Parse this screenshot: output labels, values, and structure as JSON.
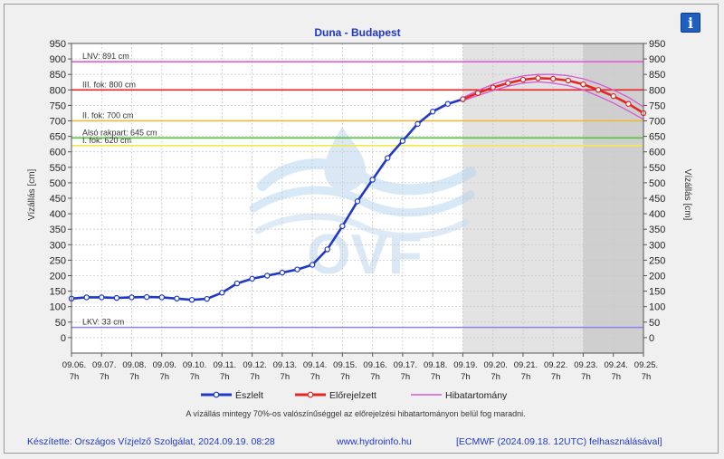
{
  "chart_data": {
    "type": "line",
    "title": "Duna - Budapest",
    "ylabel_left": "Vízállás [cm]",
    "ylabel_right": "Vízállás [cm]",
    "ylim": [
      -50,
      950
    ],
    "yticks": [
      0,
      50,
      100,
      150,
      200,
      250,
      300,
      350,
      400,
      450,
      500,
      550,
      600,
      650,
      700,
      750,
      800,
      850,
      900,
      950
    ],
    "x_dates": [
      "09.06.",
      "09.07.",
      "09.08.",
      "09.09.",
      "09.10.",
      "09.11.",
      "09.12.",
      "09.13.",
      "09.14.",
      "09.15.",
      "09.16.",
      "09.17.",
      "09.18.",
      "09.19.",
      "09.20.",
      "09.21.",
      "09.22.",
      "09.23.",
      "09.24.",
      "09.25."
    ],
    "x_hour": "7h",
    "grid": true,
    "thresholds": [
      {
        "label": "LNV: 891 cm",
        "value": 891,
        "color": "#e35bd8"
      },
      {
        "label": "III. fok: 800 cm",
        "value": 800,
        "color": "#e32626"
      },
      {
        "label": "II. fok: 700 cm",
        "value": 700,
        "color": "#f2b62c"
      },
      {
        "label": "Alsó rakpart: 645 cm",
        "value": 645,
        "color": "#55c33d"
      },
      {
        "label": "I. fok: 620 cm",
        "value": 620,
        "color": "#f0ea4a"
      },
      {
        "label": "LKV: 33 cm",
        "value": 33,
        "color": "#8585f0"
      }
    ],
    "forecast_shade": {
      "from": "09.19. 7h",
      "to": "09.25. 7h"
    },
    "series": [
      {
        "name": "Észlelt",
        "color": "#1f38c9",
        "points": [
          [
            "09.06. 7h",
            126
          ],
          [
            "09.06. 19h",
            130
          ],
          [
            "09.07. 7h",
            130
          ],
          [
            "09.07. 19h",
            128
          ],
          [
            "09.08. 7h",
            130
          ],
          [
            "09.08. 19h",
            131
          ],
          [
            "09.09. 7h",
            130
          ],
          [
            "09.09. 19h",
            126
          ],
          [
            "09.10. 7h",
            122
          ],
          [
            "09.10. 19h",
            125
          ],
          [
            "09.11. 7h",
            145
          ],
          [
            "09.11. 19h",
            175
          ],
          [
            "09.12. 7h",
            190
          ],
          [
            "09.12. 19h",
            200
          ],
          [
            "09.13. 7h",
            210
          ],
          [
            "09.13. 19h",
            220
          ],
          [
            "09.14. 7h",
            235
          ],
          [
            "09.14. 19h",
            285
          ],
          [
            "09.15. 7h",
            360
          ],
          [
            "09.15. 19h",
            440
          ],
          [
            "09.16. 7h",
            510
          ],
          [
            "09.16. 19h",
            580
          ],
          [
            "09.17. 7h",
            635
          ],
          [
            "09.17. 19h",
            690
          ],
          [
            "09.18. 7h",
            730
          ],
          [
            "09.18. 19h",
            755
          ],
          [
            "09.19. 7h",
            770
          ]
        ]
      },
      {
        "name": "Előrejelzett",
        "color": "#e32626",
        "points": [
          [
            "09.19. 7h",
            770
          ],
          [
            "09.19. 19h",
            790
          ],
          [
            "09.20. 7h",
            808
          ],
          [
            "09.20. 19h",
            822
          ],
          [
            "09.21. 7h",
            833
          ],
          [
            "09.21. 19h",
            838
          ],
          [
            "09.22. 7h",
            836
          ],
          [
            "09.22. 19h",
            830
          ],
          [
            "09.23. 7h",
            818
          ],
          [
            "09.23. 19h",
            800
          ],
          [
            "09.24. 7h",
            780
          ],
          [
            "09.24. 19h",
            755
          ],
          [
            "09.25. 7h",
            725
          ]
        ]
      },
      {
        "name": "Hibatartomány",
        "color": "#d45ad4",
        "upper": [
          [
            "09.19. 7h",
            775
          ],
          [
            "09.19. 19h",
            798
          ],
          [
            "09.20. 7h",
            818
          ],
          [
            "09.20. 19h",
            834
          ],
          [
            "09.21. 7h",
            845
          ],
          [
            "09.21. 19h",
            850
          ],
          [
            "09.22. 7h",
            850
          ],
          [
            "09.22. 19h",
            846
          ],
          [
            "09.23. 7h",
            836
          ],
          [
            "09.23. 19h",
            820
          ],
          [
            "09.24. 7h",
            800
          ],
          [
            "09.24. 19h",
            776
          ],
          [
            "09.25. 7h",
            745
          ]
        ],
        "lower": [
          [
            "09.19. 7h",
            765
          ],
          [
            "09.19. 19h",
            782
          ],
          [
            "09.20. 7h",
            798
          ],
          [
            "09.20. 19h",
            812
          ],
          [
            "09.21. 7h",
            822
          ],
          [
            "09.21. 19h",
            826
          ],
          [
            "09.22. 7h",
            822
          ],
          [
            "09.22. 19h",
            814
          ],
          [
            "09.23. 7h",
            800
          ],
          [
            "09.23. 19h",
            780
          ],
          [
            "09.24. 7h",
            758
          ],
          [
            "09.24. 19h",
            732
          ],
          [
            "09.25. 7h",
            705
          ]
        ]
      }
    ]
  },
  "legend": [
    {
      "name": "Észlelt",
      "color": "#1f38c9",
      "marker": "circle"
    },
    {
      "name": "Előrejelzett",
      "color": "#e32626",
      "marker": "circle"
    },
    {
      "name": "Hibatartomány",
      "color": "#d45ad4",
      "marker": "none"
    }
  ],
  "note": "A vízállás mintegy 70%-os valószínűséggel az előrejelzési hibatartományon belül fog maradni.",
  "footer": {
    "credit": "Készítette: Országos Vízjelző Szolgálat, 2024.09.19. 08:28",
    "url": "www.hydroinfo.hu",
    "source": "[ECMWF (2024.09.18. 12UTC) felhasználásával]"
  },
  "watermark": "OVF",
  "info_button": "i",
  "colors": {
    "title": "#1f38c9",
    "footer": "#1f38c9",
    "plot_bg": "#ffffff",
    "forecast_bg": "#e3e3e3",
    "last_day_bg": "#cfcfcf"
  }
}
